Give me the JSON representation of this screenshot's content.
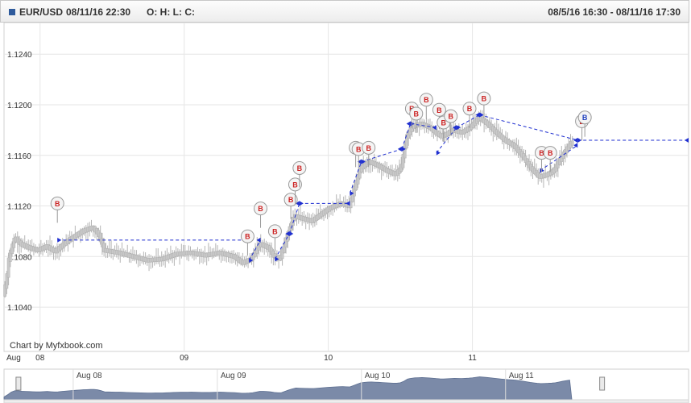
{
  "header": {
    "symbol": "EUR/USD",
    "timestamp": "08/11/16 22:30",
    "ohlc": "O: H: L: C:",
    "range": "08/5/16 16:30 - 08/11/16 17:30"
  },
  "chart_data": {
    "type": "candlestick",
    "watermark": "Chart by Myfxbook.com",
    "y_ticks": [
      1.104,
      1.108,
      1.112,
      1.116,
      1.12,
      1.124
    ],
    "y_tick_labels": [
      "1.1040",
      "1.1080",
      "1.1120",
      "1.1160",
      "1.1200",
      "1.1240"
    ],
    "ylim": [
      1.1005,
      1.1265
    ],
    "x_range": [
      0,
      4.75
    ],
    "x_ticks": [
      {
        "x": 0,
        "label": "Aug"
      },
      {
        "x": 0.25,
        "label": "08"
      },
      {
        "x": 1.25,
        "label": "09"
      },
      {
        "x": 2.25,
        "label": "10"
      },
      {
        "x": 3.25,
        "label": "11"
      }
    ],
    "price_path": [
      [
        0.0,
        1.105
      ],
      [
        0.02,
        1.106
      ],
      [
        0.04,
        1.108
      ],
      [
        0.08,
        1.1095
      ],
      [
        0.12,
        1.109
      ],
      [
        0.18,
        1.1087
      ],
      [
        0.24,
        1.1085
      ],
      [
        0.3,
        1.1088
      ],
      [
        0.36,
        1.1084
      ],
      [
        0.42,
        1.109
      ],
      [
        0.48,
        1.1095
      ],
      [
        0.55,
        1.11
      ],
      [
        0.62,
        1.1103
      ],
      [
        0.66,
        1.1098
      ],
      [
        0.7,
        1.1085
      ],
      [
        0.8,
        1.1083
      ],
      [
        0.9,
        1.108
      ],
      [
        1.0,
        1.1077
      ],
      [
        1.1,
        1.1078
      ],
      [
        1.2,
        1.1082
      ],
      [
        1.3,
        1.1083
      ],
      [
        1.4,
        1.1081
      ],
      [
        1.5,
        1.1083
      ],
      [
        1.6,
        1.108
      ],
      [
        1.66,
        1.1075
      ],
      [
        1.72,
        1.1078
      ],
      [
        1.78,
        1.109
      ],
      [
        1.84,
        1.1087
      ],
      [
        1.88,
        1.108
      ],
      [
        1.92,
        1.1078
      ],
      [
        1.98,
        1.11
      ],
      [
        2.02,
        1.1112
      ],
      [
        2.08,
        1.111
      ],
      [
        2.14,
        1.1108
      ],
      [
        2.2,
        1.1113
      ],
      [
        2.26,
        1.1118
      ],
      [
        2.34,
        1.1122
      ],
      [
        2.4,
        1.112
      ],
      [
        2.44,
        1.1135
      ],
      [
        2.48,
        1.115
      ],
      [
        2.54,
        1.1155
      ],
      [
        2.6,
        1.1152
      ],
      [
        2.66,
        1.1148
      ],
      [
        2.72,
        1.1145
      ],
      [
        2.76,
        1.115
      ],
      [
        2.8,
        1.1175
      ],
      [
        2.84,
        1.1183
      ],
      [
        2.9,
        1.1185
      ],
      [
        2.96,
        1.1182
      ],
      [
        3.0,
        1.1178
      ],
      [
        3.04,
        1.1175
      ],
      [
        3.08,
        1.1177
      ],
      [
        3.12,
        1.118
      ],
      [
        3.18,
        1.1178
      ],
      [
        3.24,
        1.1182
      ],
      [
        3.3,
        1.119
      ],
      [
        3.36,
        1.1185
      ],
      [
        3.42,
        1.1178
      ],
      [
        3.48,
        1.1172
      ],
      [
        3.54,
        1.1168
      ],
      [
        3.6,
        1.116
      ],
      [
        3.66,
        1.115
      ],
      [
        3.72,
        1.1143
      ],
      [
        3.78,
        1.1145
      ],
      [
        3.82,
        1.1148
      ],
      [
        3.88,
        1.116
      ],
      [
        3.94,
        1.117
      ]
    ],
    "trade_lines": [
      {
        "from": [
          0.37,
          1.1093
        ],
        "to": [
          1.7,
          1.1093
        ]
      },
      {
        "from": [
          1.7,
          1.1077
        ],
        "to": [
          1.78,
          1.1093
        ]
      },
      {
        "from": [
          1.88,
          1.1078
        ],
        "to": [
          1.98,
          1.1098
        ]
      },
      {
        "from": [
          1.98,
          1.1098
        ],
        "to": [
          2.05,
          1.1122
        ]
      },
      {
        "from": [
          2.05,
          1.1122
        ],
        "to": [
          2.4,
          1.1122
        ]
      },
      {
        "from": [
          2.4,
          1.113
        ],
        "to": [
          2.48,
          1.1155
        ]
      },
      {
        "from": [
          2.48,
          1.1155
        ],
        "to": [
          2.76,
          1.1165
        ]
      },
      {
        "from": [
          2.76,
          1.1165
        ],
        "to": [
          2.82,
          1.1185
        ]
      },
      {
        "from": [
          2.82,
          1.1185
        ],
        "to": [
          3.0,
          1.1182
        ]
      },
      {
        "from": [
          3.0,
          1.1162
        ],
        "to": [
          3.14,
          1.1182
        ]
      },
      {
        "from": [
          3.14,
          1.1182
        ],
        "to": [
          3.3,
          1.1192
        ]
      },
      {
        "from": [
          3.3,
          1.1192
        ],
        "to": [
          3.98,
          1.1172
        ]
      },
      {
        "from": [
          3.72,
          1.1148
        ],
        "to": [
          3.98,
          1.1168
        ]
      },
      {
        "from": [
          3.98,
          1.1172
        ],
        "to": [
          4.75,
          1.1172
        ]
      }
    ],
    "trade_markers": [
      {
        "x": 0.37,
        "y": 1.1122,
        "label": "B",
        "color": "#cc2222"
      },
      {
        "x": 1.69,
        "y": 1.1096,
        "label": "B",
        "color": "#cc2222"
      },
      {
        "x": 1.78,
        "y": 1.1118,
        "label": "B",
        "color": "#cc2222"
      },
      {
        "x": 1.88,
        "y": 1.11,
        "label": "B",
        "color": "#cc2222"
      },
      {
        "x": 1.99,
        "y": 1.1125,
        "label": "B",
        "color": "#cc2222"
      },
      {
        "x": 2.02,
        "y": 1.1137,
        "label": "B",
        "color": "#cc2222"
      },
      {
        "x": 2.05,
        "y": 1.115,
        "label": "B",
        "color": "#cc2222"
      },
      {
        "x": 2.44,
        "y": 1.1166,
        "label": "B",
        "color": "#cc2222"
      },
      {
        "x": 2.46,
        "y": 1.1165,
        "label": "B",
        "color": "#cc2222"
      },
      {
        "x": 2.53,
        "y": 1.1166,
        "label": "B",
        "color": "#cc2222"
      },
      {
        "x": 2.83,
        "y": 1.1197,
        "label": "B",
        "color": "#cc2222"
      },
      {
        "x": 2.86,
        "y": 1.1193,
        "label": "B",
        "color": "#cc2222"
      },
      {
        "x": 2.93,
        "y": 1.1204,
        "label": "B",
        "color": "#cc2222"
      },
      {
        "x": 3.02,
        "y": 1.1196,
        "label": "B",
        "color": "#cc2222"
      },
      {
        "x": 3.05,
        "y": 1.1186,
        "label": "B",
        "color": "#cc2222"
      },
      {
        "x": 3.1,
        "y": 1.1191,
        "label": "B",
        "color": "#cc2222"
      },
      {
        "x": 3.23,
        "y": 1.1197,
        "label": "B",
        "color": "#cc2222"
      },
      {
        "x": 3.33,
        "y": 1.1205,
        "label": "B",
        "color": "#cc2222"
      },
      {
        "x": 3.73,
        "y": 1.1162,
        "label": "B",
        "color": "#cc2222"
      },
      {
        "x": 3.79,
        "y": 1.1162,
        "label": "B",
        "color": "#cc2222"
      },
      {
        "x": 4.01,
        "y": 1.1187,
        "label": "B",
        "color": "#cc2222"
      },
      {
        "x": 4.03,
        "y": 1.119,
        "label": "B",
        "color": "#1f3fbf"
      }
    ],
    "navigator": {
      "labels": [
        {
          "x": 0.6,
          "label": "Aug 08"
        },
        {
          "x": 1.6,
          "label": "Aug 09"
        },
        {
          "x": 2.6,
          "label": "Aug 10"
        },
        {
          "x": 3.6,
          "label": "Aug 11"
        }
      ],
      "selection": [
        0.1,
        4.15
      ]
    }
  }
}
